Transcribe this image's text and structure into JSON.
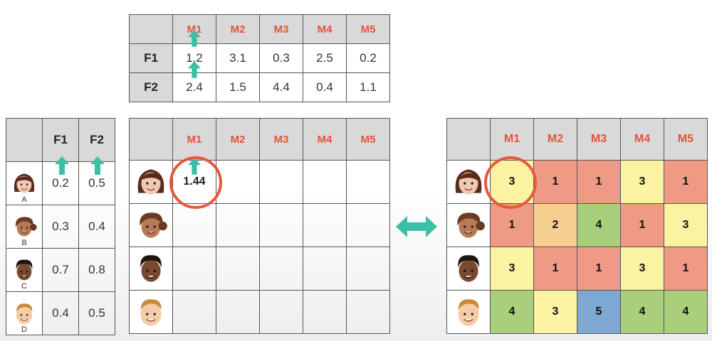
{
  "colors": {
    "movie_header": "#e2543a",
    "arrow": "#3bbfa6",
    "circle": "#e6583e",
    "rating_1": "#ef9a85",
    "rating_2": "#f6cf91",
    "rating_3": "#fbf2a2",
    "rating_4": "#a9cf7c",
    "rating_5": "#7ea7d2"
  },
  "movies": [
    "M1",
    "M2",
    "M3",
    "M4",
    "M5"
  ],
  "features": [
    "F1",
    "F2"
  ],
  "movie_features": [
    {
      "label": "F1",
      "values": [
        "1.2",
        "3.1",
        "0.3",
        "2.5",
        "0.2"
      ]
    },
    {
      "label": "F2",
      "values": [
        "2.4",
        "1.5",
        "4.4",
        "0.4",
        "1.1"
      ]
    }
  ],
  "users": [
    {
      "letter": "A",
      "face": "woman-long-hair-icon",
      "values": [
        "0.2",
        "0.5"
      ]
    },
    {
      "letter": "B",
      "face": "woman-bun-icon",
      "values": [
        "0.3",
        "0.4"
      ]
    },
    {
      "letter": "C",
      "face": "man-dark-hair-icon",
      "values": [
        "0.7",
        "0.8"
      ]
    },
    {
      "letter": "D",
      "face": "man-blond-icon",
      "values": [
        "0.4",
        "0.5"
      ]
    }
  ],
  "prediction": {
    "value": "1.44"
  },
  "ratings": [
    [
      "3",
      "1",
      "1",
      "3",
      "1"
    ],
    [
      "1",
      "2",
      "4",
      "1",
      "3"
    ],
    [
      "3",
      "1",
      "1",
      "3",
      "1"
    ],
    [
      "4",
      "3",
      "5",
      "4",
      "4"
    ]
  ]
}
